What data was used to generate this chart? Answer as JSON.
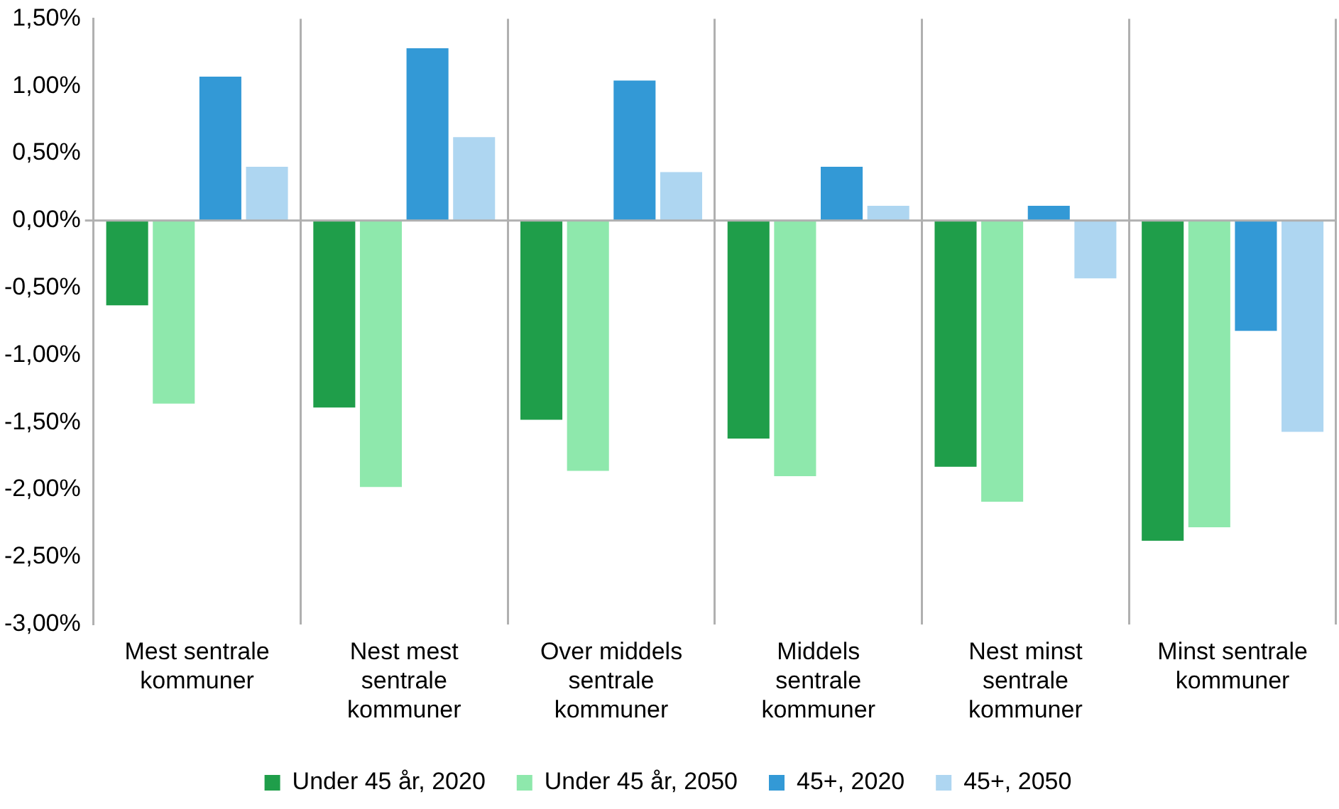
{
  "chart_data": {
    "type": "bar",
    "categories": [
      "Mest sentrale kommuner",
      "Nest mest sentrale kommuner",
      "Over middels sentrale kommuner",
      "Middels sentrale kommuner",
      "Nest minst sentrale kommuner",
      "Minst sentrale kommuner"
    ],
    "series": [
      {
        "name": "Under 45 år, 2020",
        "color": "#1f9e4a",
        "values": [
          -0.63,
          -1.39,
          -1.48,
          -1.62,
          -1.83,
          -2.38
        ]
      },
      {
        "name": "Under 45 år, 2050",
        "color": "#8ee8ac",
        "values": [
          -1.36,
          -1.98,
          -1.86,
          -1.9,
          -2.09,
          -2.28
        ]
      },
      {
        "name": "45+, 2020",
        "color": "#3399d6",
        "values": [
          1.07,
          1.28,
          1.04,
          0.4,
          0.11,
          -0.82
        ]
      },
      {
        "name": "45+, 2050",
        "color": "#aed6f1",
        "values": [
          0.4,
          0.62,
          0.36,
          0.11,
          -0.43,
          -1.57
        ]
      }
    ],
    "ylim": [
      -3,
      1.5
    ],
    "yticks": [
      {
        "value": -3,
        "label": "-3,00%"
      },
      {
        "value": -2.5,
        "label": "-2,50%"
      },
      {
        "value": -2,
        "label": "-2,00%"
      },
      {
        "value": -1.5,
        "label": "-1,50%"
      },
      {
        "value": -1,
        "label": "-1,00%"
      },
      {
        "value": -0.5,
        "label": "-0,50%"
      },
      {
        "value": 0,
        "label": "0,00%"
      },
      {
        "value": 0.5,
        "label": "0,50%"
      },
      {
        "value": 1,
        "label": "1,00%"
      },
      {
        "value": 1.5,
        "label": "1,50%"
      }
    ],
    "ref_lines": [
      {
        "axis": "y",
        "value": 0,
        "color": "#b0b0b0"
      }
    ],
    "grid": "x",
    "legend": "bottom"
  }
}
